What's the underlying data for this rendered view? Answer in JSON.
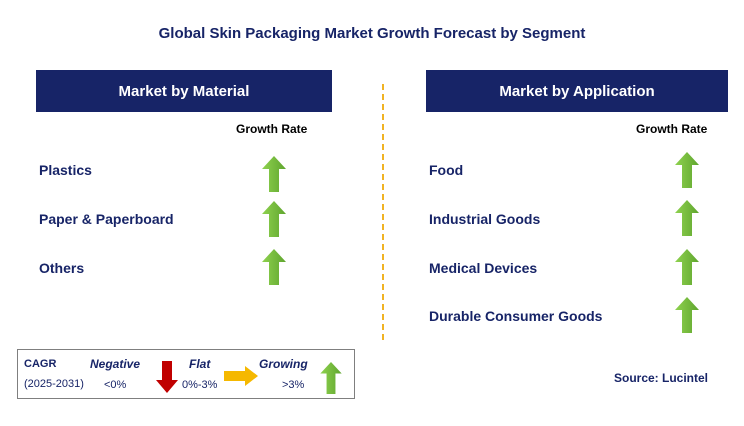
{
  "title": "Global Skin Packaging Market Growth Forecast by Segment",
  "left_panel": {
    "header": "Market by Material",
    "growth_label": "Growth Rate",
    "items": [
      {
        "label": "Plastics",
        "trend": "growing"
      },
      {
        "label": "Paper & Paperboard",
        "trend": "growing"
      },
      {
        "label": "Others",
        "trend": "growing"
      }
    ]
  },
  "right_panel": {
    "header": "Market by Application",
    "growth_label": "Growth Rate",
    "items": [
      {
        "label": "Food",
        "trend": "growing"
      },
      {
        "label": "Industrial Goods",
        "trend": "growing"
      },
      {
        "label": "Medical Devices",
        "trend": "growing"
      },
      {
        "label": "Durable Consumer Goods",
        "trend": "growing"
      }
    ]
  },
  "legend": {
    "cagr_label": "CAGR",
    "period": "(2025-2031)",
    "negative": {
      "label": "Negative",
      "range": "<0%",
      "color": "#c00000"
    },
    "flat": {
      "label": "Flat",
      "range": "0%-3%",
      "color": "#f5b800"
    },
    "growing": {
      "label": "Growing",
      "range": ">3%",
      "color": "#7ac143"
    }
  },
  "source": "Source: Lucintel",
  "colors": {
    "header_bg": "#172467",
    "divider": "#f0b324",
    "arrow_up": "#7ac143"
  }
}
